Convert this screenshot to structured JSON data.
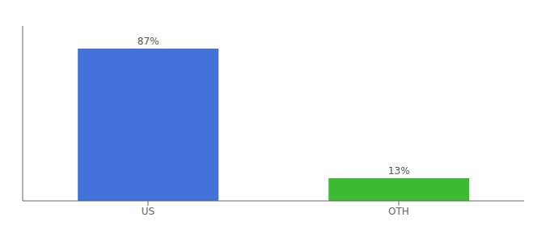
{
  "chart_data": {
    "type": "bar",
    "categories": [
      "US",
      "OTH"
    ],
    "values": [
      87,
      13
    ],
    "value_labels": [
      "87%",
      "13%"
    ],
    "colors": [
      "#4472db",
      "#3dbb35"
    ],
    "ylim": [
      0,
      100
    ],
    "data_labels": true,
    "tick_labels": "x"
  }
}
